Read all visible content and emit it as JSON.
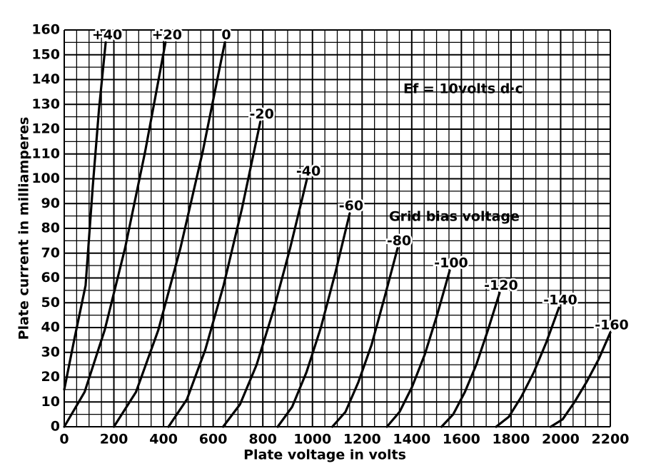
{
  "chart_data": {
    "type": "line",
    "x_label": "Plate voltage in volts",
    "y_label": "Plate current in milliamperes",
    "annotations": [
      "Ef = 10volts d·c",
      "Grid bias voltage"
    ],
    "color": "#000000",
    "grid": true,
    "xlim": [
      0,
      2200
    ],
    "xticks": [
      0,
      200,
      400,
      600,
      800,
      1000,
      1200,
      1400,
      1600,
      1800,
      2000,
      2200
    ],
    "ylim": [
      0,
      160
    ],
    "yticks": [
      0,
      10,
      20,
      30,
      40,
      50,
      60,
      70,
      80,
      90,
      100,
      110,
      120,
      130,
      140,
      150,
      160
    ],
    "series": [
      {
        "name": "+40",
        "x": [
          0,
          40,
          86,
          115,
          140,
          167
        ],
        "values": [
          15,
          35,
          57,
          97,
          128,
          155
        ]
      },
      {
        "name": "+20",
        "x": [
          0,
          82,
          163,
          245,
          326,
          408
        ],
        "values": [
          0,
          14,
          39,
          72,
          111,
          155
        ]
      },
      {
        "name": "0",
        "x": [
          200,
          289,
          379,
          468,
          558,
          647
        ],
        "values": [
          0,
          14,
          39,
          72,
          111,
          155
        ]
      },
      {
        "name": "-20",
        "x": [
          420,
          494,
          568,
          642,
          716,
          790
        ],
        "values": [
          0,
          11,
          31,
          57,
          88,
          123
        ]
      },
      {
        "name": "-40",
        "x": [
          640,
          708,
          775,
          843,
          910,
          978
        ],
        "values": [
          0,
          9,
          25,
          47,
          72,
          100
        ]
      },
      {
        "name": "-60",
        "x": [
          860,
          918,
          976,
          1034,
          1092,
          1150
        ],
        "values": [
          0,
          8,
          22,
          40,
          62,
          86
        ]
      },
      {
        "name": "-80",
        "x": [
          1080,
          1133,
          1185,
          1238,
          1290,
          1343
        ],
        "values": [
          0,
          6,
          18,
          33,
          52,
          72
        ]
      },
      {
        "name": "-100",
        "x": [
          1300,
          1351,
          1401,
          1452,
          1502,
          1553
        ],
        "values": [
          0,
          6,
          16,
          29,
          45,
          63
        ]
      },
      {
        "name": "-120",
        "x": [
          1520,
          1567,
          1614,
          1660,
          1707,
          1754
        ],
        "values": [
          0,
          5,
          14,
          25,
          39,
          54
        ]
      },
      {
        "name": "-140",
        "x": [
          1740,
          1791,
          1841,
          1892,
          1942,
          1993
        ],
        "values": [
          0,
          4,
          12,
          22,
          34,
          48
        ]
      },
      {
        "name": "-160",
        "x": [
          1960,
          2008,
          2056,
          2104,
          2152,
          2200
        ],
        "values": [
          0,
          3,
          10,
          18,
          27,
          38
        ]
      }
    ]
  }
}
